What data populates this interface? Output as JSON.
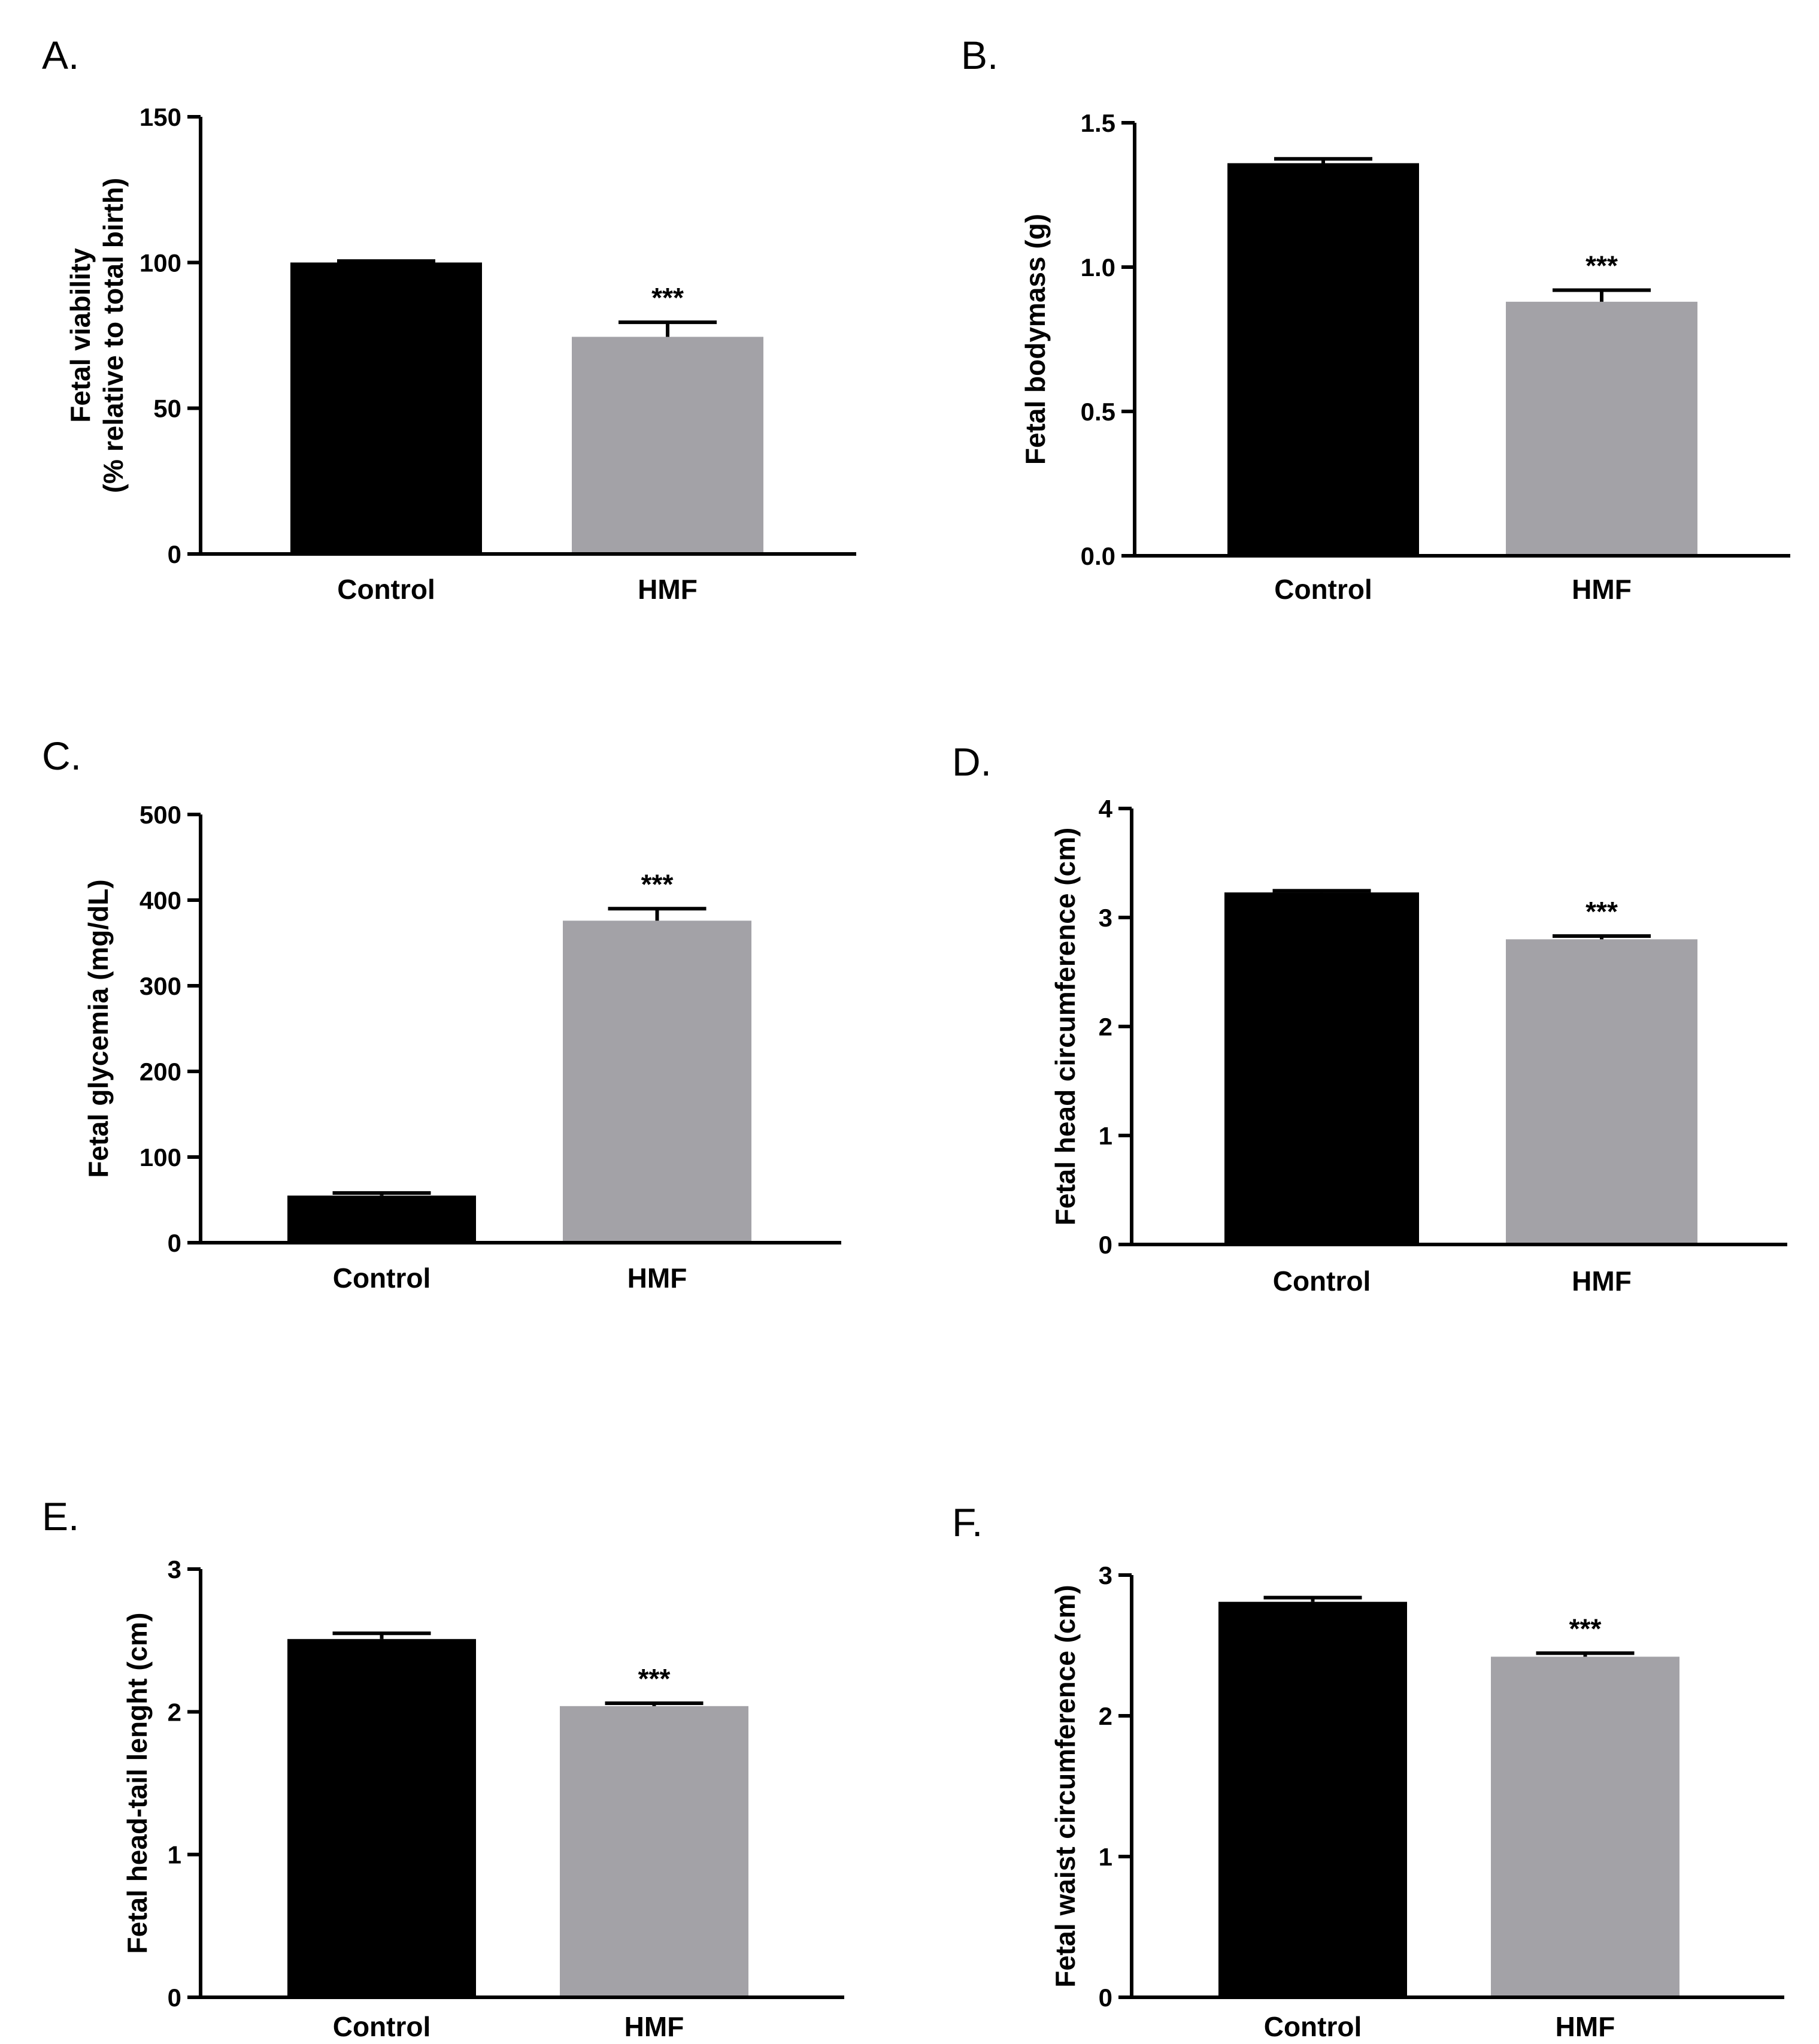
{
  "colors": {
    "control": "#000000",
    "hmf": "#a3a2a7",
    "axis": "#000000"
  },
  "chart_data": [
    {
      "panel": "A.",
      "type": "bar",
      "categories": [
        "Control",
        "HMF"
      ],
      "values": [
        100,
        74.5
      ],
      "errors": [
        0.5,
        5
      ],
      "significance": [
        "",
        "***"
      ],
      "ylabel": [
        "Fetal viability",
        "(% relative to total birth)"
      ],
      "ylim": [
        0,
        150
      ],
      "yticks": [
        0,
        50,
        100,
        150
      ],
      "ytick_labels": [
        "0",
        "50",
        "100",
        "150"
      ]
    },
    {
      "panel": "B.",
      "type": "bar",
      "categories": [
        "Control",
        "HMF"
      ],
      "values": [
        1.36,
        0.88
      ],
      "errors": [
        0.015,
        0.04
      ],
      "significance": [
        "",
        "***"
      ],
      "ylabel": [
        "Fetal bodymass (g)"
      ],
      "ylim": [
        0,
        1.5
      ],
      "yticks": [
        0,
        0.5,
        1.0,
        1.5
      ],
      "ytick_labels": [
        "0.0",
        "0.5",
        "1.0",
        "1.5"
      ]
    },
    {
      "panel": "C.",
      "type": "bar",
      "categories": [
        "Control",
        "HMF"
      ],
      "values": [
        55,
        376
      ],
      "errors": [
        3,
        14
      ],
      "significance": [
        "",
        "***"
      ],
      "ylabel": [
        "Fetal glycemia (mg/dL)"
      ],
      "ylim": [
        0,
        500
      ],
      "yticks": [
        0,
        100,
        200,
        300,
        400,
        500
      ],
      "ytick_labels": [
        "0",
        "100",
        "200",
        "300",
        "400",
        "500"
      ]
    },
    {
      "panel": "D.",
      "type": "bar",
      "categories": [
        "Control",
        "HMF"
      ],
      "values": [
        3.23,
        2.8
      ],
      "errors": [
        0.015,
        0.03
      ],
      "significance": [
        "",
        "***"
      ],
      "ylabel": [
        "Fetal head circumference (cm)"
      ],
      "ylim": [
        0,
        4
      ],
      "yticks": [
        0,
        1,
        2,
        3,
        4
      ],
      "ytick_labels": [
        "0",
        "1",
        "2",
        "3",
        "4"
      ]
    },
    {
      "panel": "E.",
      "type": "bar",
      "categories": [
        "Control",
        "HMF"
      ],
      "values": [
        2.51,
        2.04
      ],
      "errors": [
        0.04,
        0.02
      ],
      "significance": [
        "",
        "***"
      ],
      "ylabel": [
        "Fetal head-tail lenght (cm)"
      ],
      "ylim": [
        0,
        3
      ],
      "yticks": [
        0,
        1,
        2,
        3
      ],
      "ytick_labels": [
        "0",
        "1",
        "2",
        "3"
      ]
    },
    {
      "panel": "F.",
      "type": "bar",
      "categories": [
        "Control",
        "HMF"
      ],
      "values": [
        2.81,
        2.42
      ],
      "errors": [
        0.03,
        0.025
      ],
      "significance": [
        "",
        "***"
      ],
      "ylabel": [
        "Fetal waist circumference (cm)"
      ],
      "ylim": [
        0,
        3
      ],
      "yticks": [
        0,
        1,
        2,
        3
      ],
      "ytick_labels": [
        "0",
        "1",
        "2",
        "3"
      ]
    }
  ]
}
